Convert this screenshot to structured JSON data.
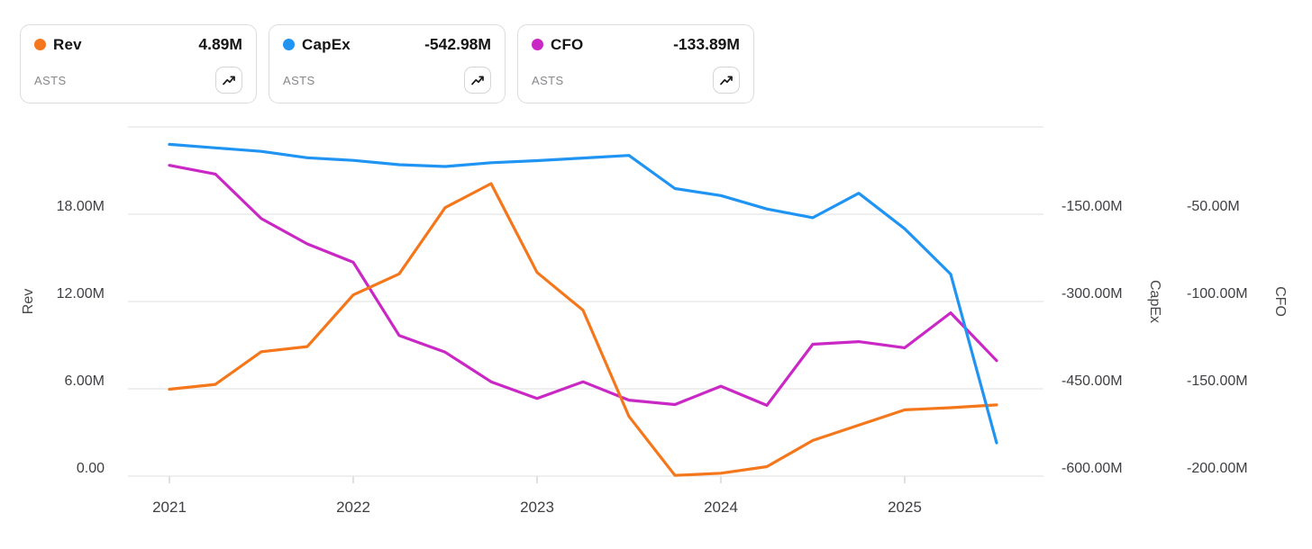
{
  "cards": [
    {
      "label": "Rev",
      "value": "4.89M",
      "ticker": "ASTS",
      "color": "#f5771b",
      "icon": "trending-up"
    },
    {
      "label": "CapEx",
      "value": "-542.98M",
      "ticker": "ASTS",
      "color": "#2094f3",
      "icon": "trending-up"
    },
    {
      "label": "CFO",
      "value": "-133.89M",
      "ticker": "ASTS",
      "color": "#ca28c5",
      "icon": "trending-up"
    }
  ],
  "chart_data": {
    "type": "line",
    "grid": "horizontal-only",
    "legend_position": "top-cards",
    "periods": [
      "Q1 2021",
      "Q2 2021",
      "Q3 2021",
      "Q4 2021",
      "Q1 2022",
      "Q2 2022",
      "Q3 2022",
      "Q4 2022",
      "Q1 2023",
      "Q2 2023",
      "Q3 2023",
      "Q4 2023",
      "Q1 2024",
      "Q2 2024",
      "Q3 2024",
      "Q4 2024",
      "Q1 2025",
      "Q2 2025",
      "Q3 2025"
    ],
    "series": [
      {
        "name": "Rev",
        "axis": "rev",
        "color": "#f5771b",
        "unit": "M USD",
        "values": [
          5.97,
          6.3,
          8.55,
          8.9,
          12.45,
          13.9,
          18.45,
          20.1,
          14.0,
          11.4,
          4.1,
          0.05,
          0.2,
          0.65,
          2.45,
          3.5,
          4.55,
          4.7,
          4.89
        ]
      },
      {
        "name": "CapEx",
        "axis": "capex",
        "color": "#2094f3",
        "unit": "M USD",
        "values": [
          -30,
          -36,
          -42,
          -53,
          -57.5,
          -65,
          -68,
          -61.5,
          -58,
          -53.5,
          -49,
          -106,
          -118,
          -141,
          -156,
          -114,
          -175,
          -253,
          -542.98
        ]
      },
      {
        "name": "CFO",
        "axis": "cfo",
        "color": "#ca28c5",
        "unit": "M USD",
        "values": [
          -22,
          -27,
          -52.5,
          -67,
          -77.5,
          -119.5,
          -129,
          -146,
          -155.5,
          -146,
          -156.5,
          -159,
          -148.5,
          -159.5,
          -124.5,
          -123,
          -126.5,
          -106.5,
          -133.89
        ]
      }
    ],
    "axes": {
      "rev": {
        "title": "Rev",
        "side": "left",
        "range_m": [
          0,
          24
        ],
        "ticks": [
          {
            "value": 18,
            "label": "18.00M"
          },
          {
            "value": 12,
            "label": "12.00M"
          },
          {
            "value": 6,
            "label": "6.00M"
          },
          {
            "value": 0,
            "label": "0.00"
          }
        ]
      },
      "capex": {
        "title": "CapEx",
        "side": "right-inner",
        "range_m": [
          -600,
          0
        ],
        "ticks": [
          {
            "value": -150,
            "label": "-150.00M"
          },
          {
            "value": -300,
            "label": "-300.00M"
          },
          {
            "value": -450,
            "label": "-450.00M"
          },
          {
            "value": -600,
            "label": "-600.00M"
          }
        ]
      },
      "cfo": {
        "title": "CFO",
        "side": "right-outer",
        "range_m": [
          -200,
          0
        ],
        "ticks": [
          {
            "value": -50,
            "label": "-50.00M"
          },
          {
            "value": -100,
            "label": "-100.00M"
          },
          {
            "value": -150,
            "label": "-150.00M"
          },
          {
            "value": -200,
            "label": "-200.00M"
          }
        ]
      }
    },
    "x_axis": {
      "ticks": [
        {
          "t": 2021,
          "label": "2021"
        },
        {
          "t": 2022,
          "label": "2022"
        },
        {
          "t": 2023,
          "label": "2023"
        },
        {
          "t": 2024,
          "label": "2024"
        },
        {
          "t": 2025,
          "label": "2025"
        }
      ]
    },
    "gridline_values_rev": [
      24,
      18,
      12,
      6,
      0
    ],
    "draw_order": [
      "CFO",
      "Rev",
      "CapEx"
    ]
  },
  "colors": {
    "gridline": "#e5e5e5",
    "axis_tick": "#cccccc",
    "card_border": "#dcdcde"
  }
}
